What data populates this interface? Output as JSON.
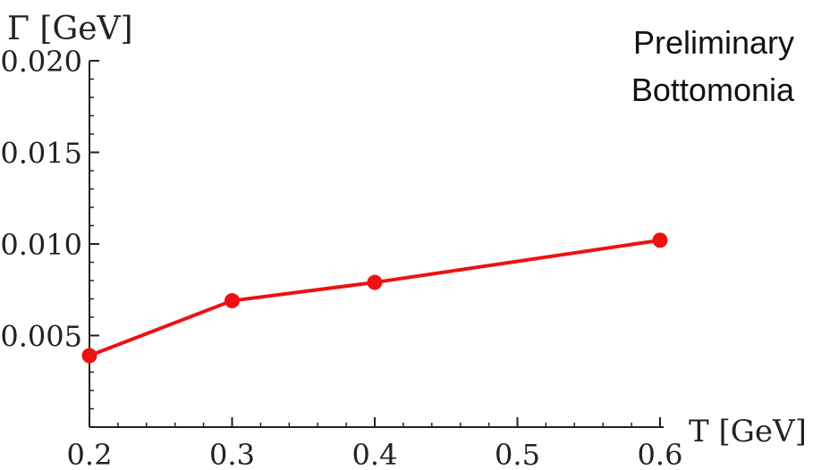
{
  "chart_data": {
    "type": "line",
    "ylabel": "Γ [GeV]",
    "xlabel": "T [GeV]",
    "annotation_lines": [
      "Preliminary",
      "Bottomonia"
    ],
    "x_ticks": [
      "0.2",
      "0.3",
      "0.4",
      "0.5",
      "0.6"
    ],
    "y_ticks": [
      "0.005",
      "0.010",
      "0.015",
      "0.020"
    ],
    "xlim": [
      0.2,
      0.6
    ],
    "ylim": [
      0.0,
      0.02
    ],
    "series": [
      {
        "color": "#ee1111",
        "points": [
          {
            "x": 0.2,
            "y": 0.0039
          },
          {
            "x": 0.3,
            "y": 0.0069
          },
          {
            "x": 0.4,
            "y": 0.0079
          },
          {
            "x": 0.6,
            "y": 0.0102
          }
        ]
      }
    ]
  }
}
